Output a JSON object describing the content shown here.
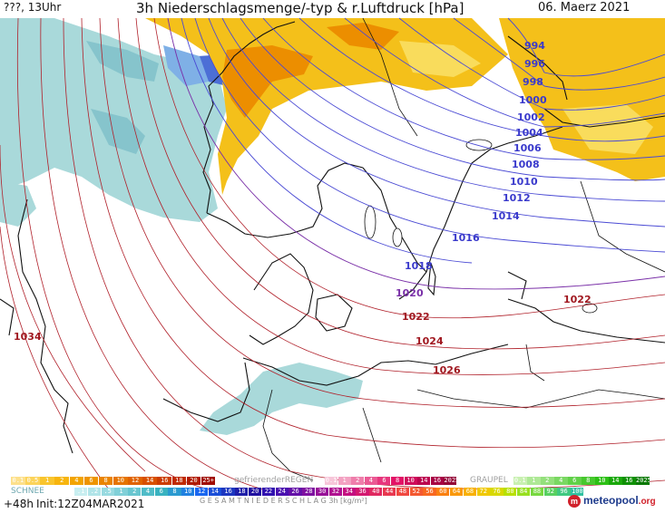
{
  "header": {
    "left": "???, 13Uhr",
    "title": "3h Niederschlagsmenge/-typ & r.Luftdruck [hPa]",
    "date": "06. Maerz 2021"
  },
  "isobars": {
    "blue": [
      "994",
      "996",
      "998",
      "1000",
      "1002",
      "1004",
      "1006",
      "1008",
      "1010",
      "1012",
      "1014",
      "1016",
      "1018"
    ],
    "purple": [
      "1020"
    ],
    "red": [
      "1022",
      "1024",
      "1026",
      "1022",
      "1034"
    ]
  },
  "legend": {
    "snow_label": "SCHNEE",
    "freezing_rain_label": "gefrierenderREGEN",
    "graupel_label": "GRAUPEL",
    "total_label": "G E S A M T N I E D E R S C H L A G   3h   [kg/m²]",
    "rain_scale": [
      "0.1",
      "0.5",
      "1",
      "2",
      "4",
      "6",
      "8",
      "10",
      "12",
      "14",
      "16",
      "18",
      "20",
      "25+"
    ],
    "freezing_scale": [
      "0.1",
      "1",
      "2",
      "4",
      "6",
      "8",
      "10",
      "14",
      "16",
      "2025+"
    ],
    "graupel_scale": [
      "0.1",
      "1",
      "2",
      "4",
      "6",
      "8",
      "10",
      "14",
      "16",
      "2025+"
    ],
    "snow_scale": [
      ".1",
      ".2",
      ".5",
      "1",
      "2",
      "4",
      "6",
      "8",
      "10",
      "12",
      "14",
      "16",
      "18"
    ],
    "total_scale": [
      "20",
      "22",
      "24",
      "26",
      "28",
      "30",
      "32",
      "34",
      "36",
      "40",
      "44",
      "48",
      "52",
      "56",
      "60",
      "64",
      "68",
      "72",
      "76",
      "80",
      "84",
      "88",
      "92",
      "96",
      "100"
    ]
  },
  "footer": {
    "forecast": "+48h",
    "init": "Init:12Z04MAR2021",
    "brand": "meteopool",
    "brand_tld": ".org"
  },
  "colors": {
    "rain": "#f2b400",
    "rain_heavy": "#ee8c00",
    "snow": "#a8d8d8",
    "isobar_blue": "#3a3acc",
    "isobar_purple": "#7a30a8",
    "isobar_red": "#b0202a"
  }
}
